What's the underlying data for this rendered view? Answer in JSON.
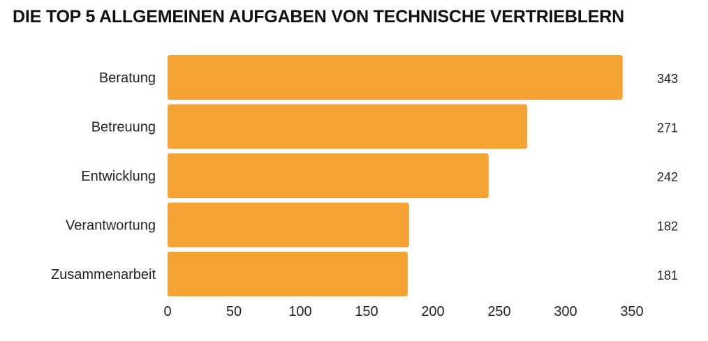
{
  "chart_data": {
    "type": "bar",
    "orientation": "horizontal",
    "title": "DIE TOP 5 ALLGEMEINEN AUFGABEN VON TECHNISCHE VERTRIEBLERN",
    "categories": [
      "Beratung",
      "Betreuung",
      "Entwicklung",
      "Verantwortung",
      "Zusammenarbeit"
    ],
    "values": [
      343,
      271,
      242,
      182,
      181
    ],
    "data_labels": [
      "343",
      "271",
      "242",
      "182",
      "181"
    ],
    "xlim": [
      0,
      350
    ],
    "xticks": [
      "0",
      "50",
      "100",
      "150",
      "200",
      "250",
      "300",
      "350"
    ],
    "xlabel": "",
    "ylabel": "",
    "grid": false,
    "bar_color": "#F4A332"
  }
}
